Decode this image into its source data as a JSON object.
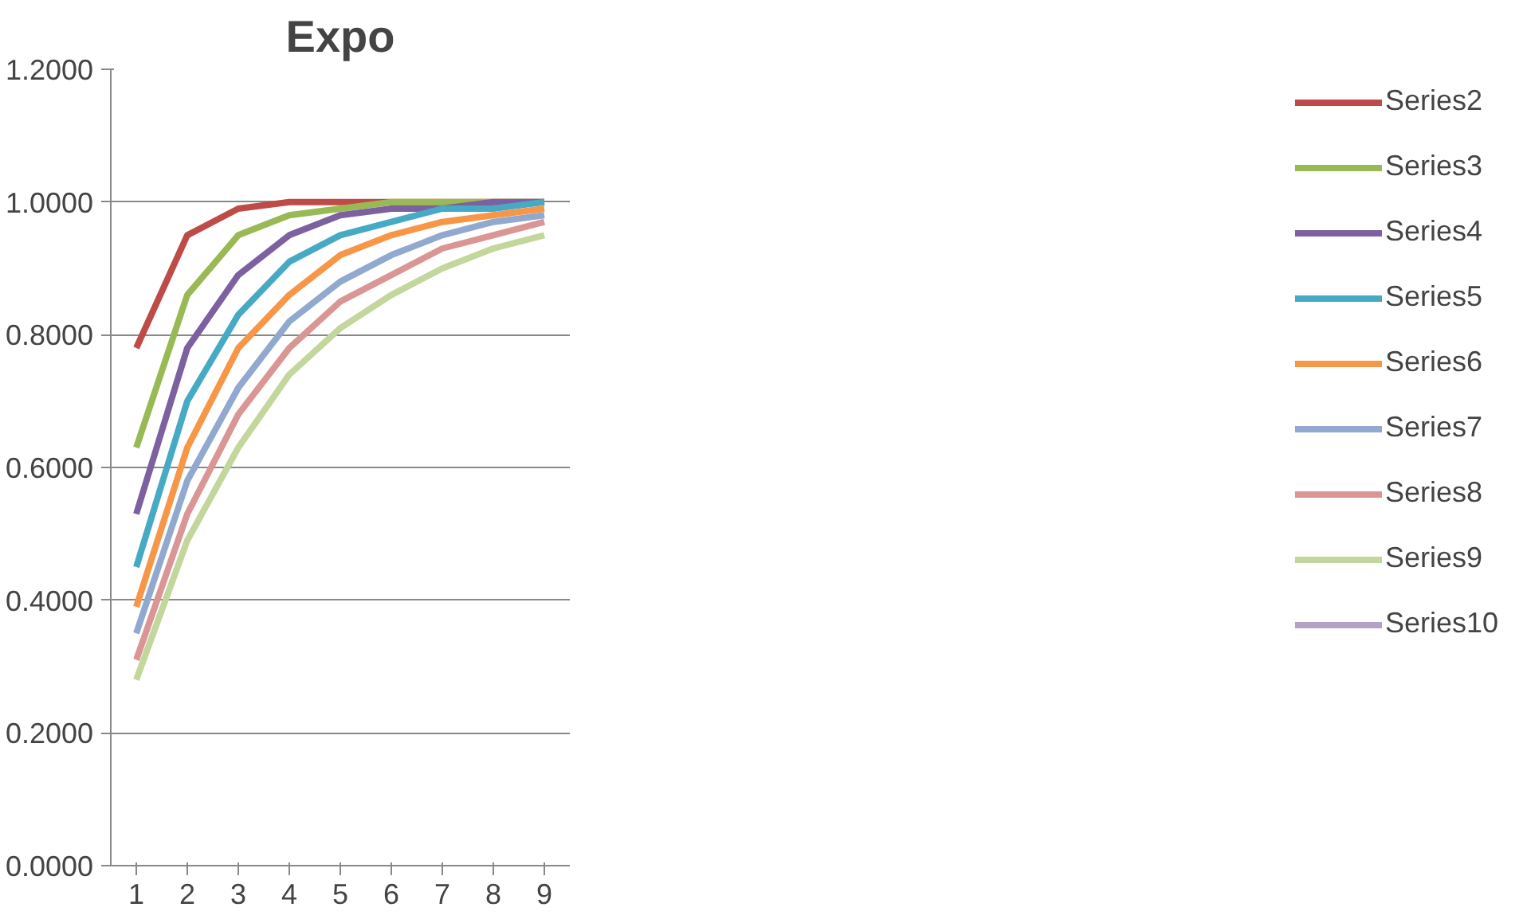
{
  "chart_data": {
    "type": "line",
    "title": "Expo",
    "categories": [
      "1",
      "2",
      "3",
      "4",
      "5",
      "6",
      "7",
      "8",
      "9"
    ],
    "ylim": [
      0,
      1.2
    ],
    "yticks": [
      {
        "value": 0,
        "label": "0.0000"
      },
      {
        "value": 0.2,
        "label": "0.2000"
      },
      {
        "value": 0.4,
        "label": "0.4000"
      },
      {
        "value": 0.6,
        "label": "0.6000"
      },
      {
        "value": 0.8,
        "label": "0.8000"
      },
      {
        "value": 1.0,
        "label": "1.0000"
      },
      {
        "value": 1.2,
        "label": "1.2000"
      }
    ],
    "grid": "y",
    "legend": "right",
    "marker": "none",
    "line_style": "solid",
    "series": [
      {
        "name": "Series2",
        "color": "#be4b48",
        "values": [
          0.78,
          0.95,
          0.99,
          1.0,
          1.0,
          1.0,
          1.0,
          1.0,
          1.0
        ]
      },
      {
        "name": "Series3",
        "color": "#98b954",
        "values": [
          0.63,
          0.86,
          0.95,
          0.98,
          0.99,
          1.0,
          1.0,
          1.0,
          1.0
        ]
      },
      {
        "name": "Series4",
        "color": "#7d60a0",
        "values": [
          0.53,
          0.78,
          0.89,
          0.95,
          0.98,
          0.99,
          0.99,
          1.0,
          1.0
        ]
      },
      {
        "name": "Series5",
        "color": "#46aac5",
        "values": [
          0.45,
          0.7,
          0.83,
          0.91,
          0.95,
          0.97,
          0.99,
          0.99,
          1.0
        ]
      },
      {
        "name": "Series6",
        "color": "#f79646",
        "values": [
          0.39,
          0.63,
          0.78,
          0.86,
          0.92,
          0.95,
          0.97,
          0.98,
          0.99
        ]
      },
      {
        "name": "Series7",
        "color": "#92a9cf",
        "values": [
          0.35,
          0.58,
          0.72,
          0.82,
          0.88,
          0.92,
          0.95,
          0.97,
          0.98
        ]
      },
      {
        "name": "Series8",
        "color": "#d99694",
        "values": [
          0.31,
          0.53,
          0.68,
          0.78,
          0.85,
          0.89,
          0.93,
          0.95,
          0.97
        ]
      },
      {
        "name": "Series9",
        "color": "#c3d69b",
        "values": [
          0.28,
          0.49,
          0.63,
          0.74,
          0.81,
          0.86,
          0.9,
          0.93,
          0.95
        ]
      },
      {
        "name": "Series10",
        "color": "#b3a2c7",
        "values": [
          null,
          null,
          null,
          null,
          null,
          null,
          null,
          null,
          null
        ]
      }
    ]
  }
}
